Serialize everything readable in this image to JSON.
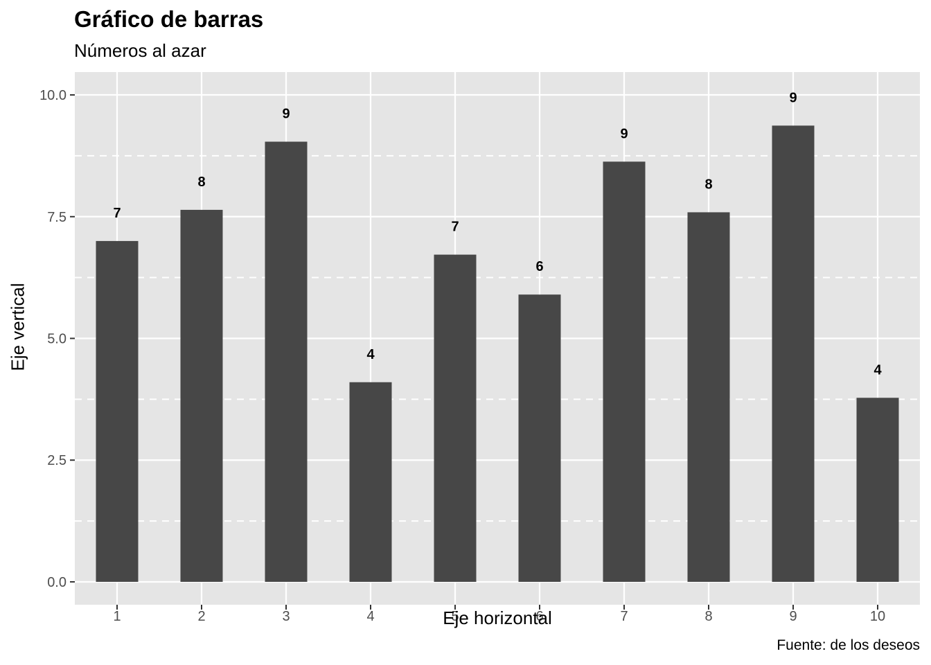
{
  "chart_data": {
    "type": "bar",
    "title": "Gráfico de barras",
    "subtitle": "Números al azar",
    "caption": "Fuente: de los deseos",
    "xlabel": "Eje horizontal",
    "ylabel": "Eje vertical",
    "categories": [
      "1",
      "2",
      "3",
      "4",
      "5",
      "6",
      "7",
      "8",
      "9",
      "10"
    ],
    "values": [
      7.0,
      7.64,
      9.04,
      4.1,
      6.72,
      5.9,
      8.63,
      7.59,
      9.37,
      3.78
    ],
    "labels": [
      "7",
      "8",
      "9",
      "4",
      "7",
      "6",
      "9",
      "8",
      "9",
      "4"
    ],
    "ylim": [
      -0.47,
      10.47
    ],
    "yticks": [
      0.0,
      2.5,
      5.0,
      7.5,
      10.0
    ],
    "ytick_labels": [
      "0.0",
      "2.5",
      "5.0",
      "7.5",
      "10.0"
    ],
    "dashed_lines": [
      1.25,
      3.75,
      6.25,
      8.75
    ],
    "grid": true,
    "colors": {
      "panel": "#e5e5e5",
      "bar": "#474747",
      "grid": "#ffffff",
      "tick_text": "#4d4d4d",
      "tick": "#333333"
    }
  }
}
